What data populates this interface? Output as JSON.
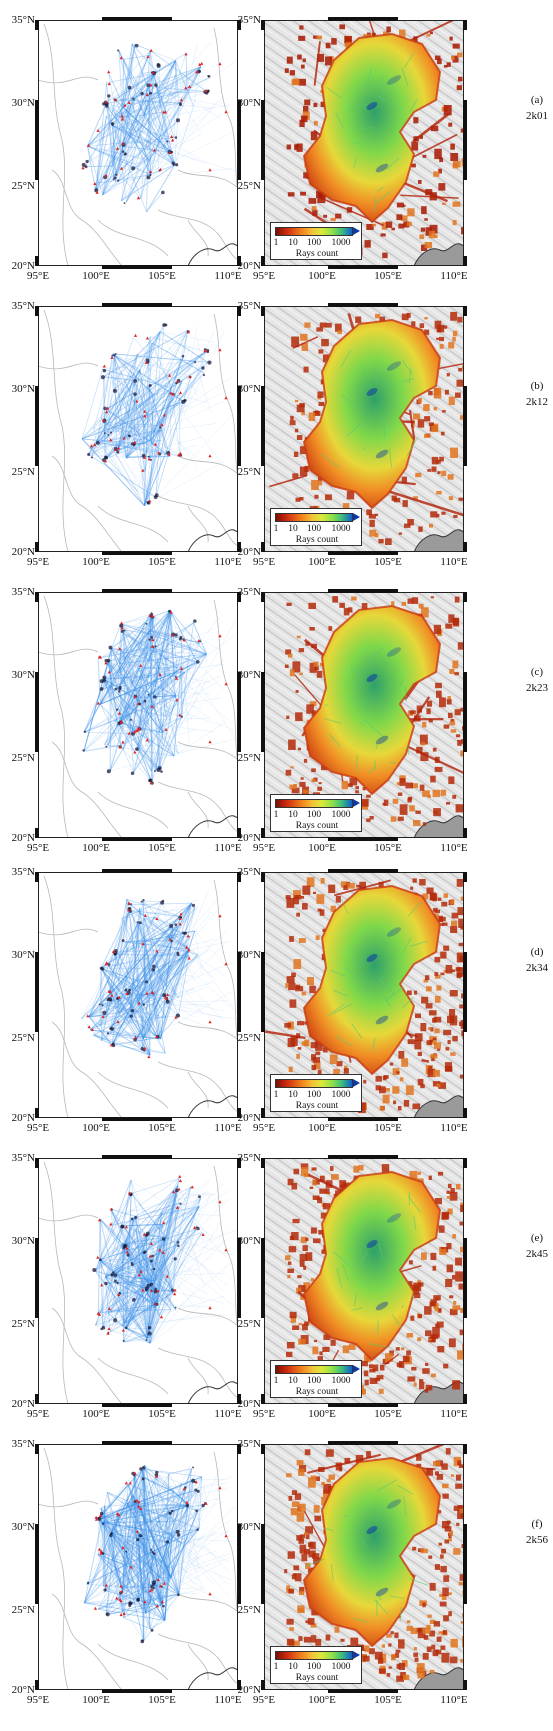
{
  "axes": {
    "lat_labels": [
      "35°N",
      "30°N",
      "25°N",
      "20°N"
    ],
    "lon_labels": [
      "95°E",
      "100°E",
      "105°E",
      "110°E"
    ],
    "lat_range": [
      19.5,
      35
    ],
    "lon_range": [
      94.5,
      110
    ]
  },
  "legend": {
    "title": "Rays count",
    "ticks": [
      "1",
      "10",
      "100",
      "1000"
    ],
    "scale": "log"
  },
  "colors": {
    "ray_path": "#3a8fe8",
    "station": "#e02424",
    "event": "#1a1a3a",
    "low_count": "#a01a00",
    "high_count": "#0b3aa8",
    "contour": "#b8b8b8"
  },
  "panels": [
    {
      "letter": "(a)",
      "period": "2k01"
    },
    {
      "letter": "(b)",
      "period": "2k12"
    },
    {
      "letter": "(c)",
      "period": "2k23"
    },
    {
      "letter": "(d)",
      "period": "2k34"
    },
    {
      "letter": "(e)",
      "period": "2k45"
    },
    {
      "letter": "(f)",
      "period": "2k56"
    }
  ]
}
